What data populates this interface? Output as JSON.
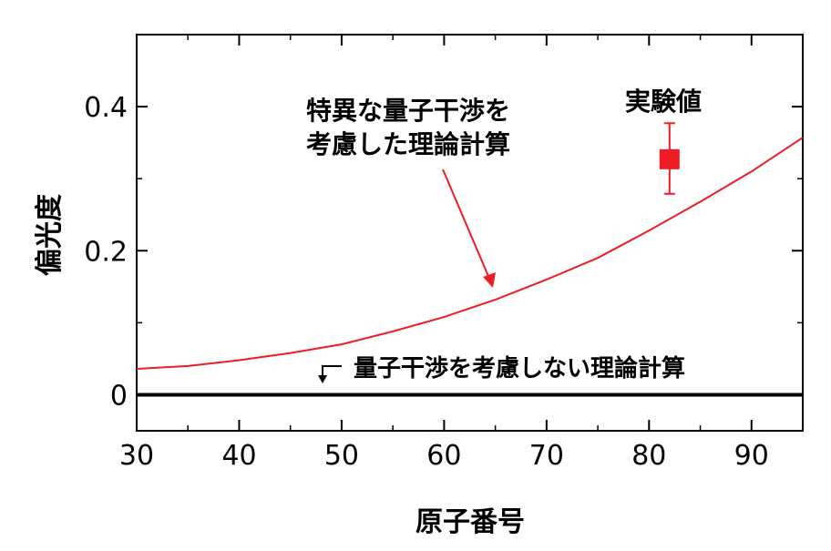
{
  "colors": {
    "accent": "#ee1c25",
    "axis": "#000000",
    "baseline": "#000000",
    "background": "#ffffff"
  },
  "chart_data": {
    "type": "line",
    "xlabel": "原子番号",
    "ylabel": "偏光度",
    "xlim": [
      30,
      95
    ],
    "ylim": [
      -0.05,
      0.5
    ],
    "x_ticks": [
      30,
      40,
      50,
      60,
      70,
      80,
      90
    ],
    "x_tick_labels": [
      "30",
      "40",
      "50",
      "60",
      "70",
      "80",
      "90"
    ],
    "y_ticks": [
      0,
      0.2,
      0.4
    ],
    "y_tick_labels": [
      "0",
      "0.2",
      "0.4"
    ],
    "grid": false,
    "series": [
      {
        "name": "特異な量子干渉を考慮した理論計算",
        "color": "#ee1c25",
        "x": [
          30,
          35,
          40,
          45,
          50,
          55,
          60,
          65,
          70,
          75,
          80,
          85,
          90,
          95
        ],
        "y": [
          0.036,
          0.04,
          0.048,
          0.058,
          0.07,
          0.088,
          0.108,
          0.132,
          0.16,
          0.19,
          0.228,
          0.268,
          0.31,
          0.357
        ]
      },
      {
        "name": "量子干渉を考慮しない理論計算",
        "color": "#000000",
        "x": [
          30,
          95
        ],
        "y": [
          0,
          0
        ]
      }
    ],
    "points": [
      {
        "name": "実験値",
        "color": "#ee1c25",
        "x": 82,
        "y": 0.327,
        "y_err_low": 0.279,
        "y_err_high": 0.377
      }
    ],
    "annotations": {
      "theory_line1": "特異な量子干渉を",
      "theory_line2": "考慮した理論計算",
      "experiment": "実験値",
      "baseline": "量子干渉を考慮しない理論計算"
    }
  }
}
